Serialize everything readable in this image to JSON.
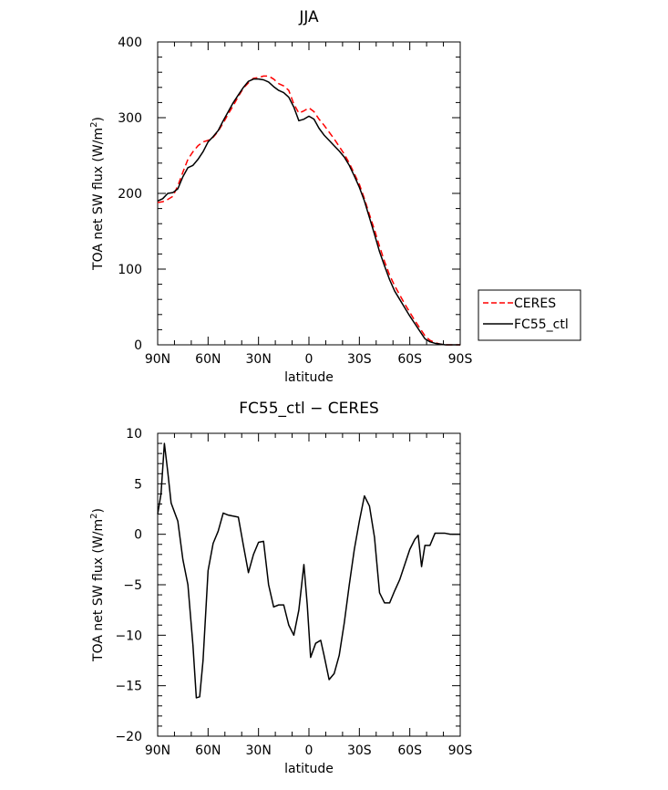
{
  "chart_data": [
    {
      "type": "line",
      "title": "JJA",
      "xlabel": "latitude",
      "ylabel": "TOA net SW flux (W/m",
      "ylabel_sup": "2",
      "ylabel_end": ")",
      "xlim": [
        90,
        -90
      ],
      "ylim": [
        0,
        400
      ],
      "xticks": [
        90,
        60,
        30,
        0,
        -30,
        -60,
        -90
      ],
      "xtick_labels": [
        "90N",
        "60N",
        "30N",
        "0",
        "30S",
        "60S",
        "90S"
      ],
      "yticks": [
        0,
        100,
        200,
        300,
        400
      ],
      "ytick_labels": [
        "0",
        "100",
        "200",
        "300",
        "400"
      ],
      "legend_position": "right",
      "series": [
        {
          "name": "CERES",
          "color": "#ff0000",
          "dash": "dashed",
          "x": [
            90,
            87,
            84,
            81,
            78,
            75,
            72,
            69,
            66,
            63,
            60,
            57,
            54,
            51,
            48,
            45,
            42,
            39,
            36,
            33,
            30,
            27,
            24,
            21,
            18,
            15,
            12,
            9,
            6,
            3,
            0,
            -3,
            -6,
            -9,
            -12,
            -15,
            -18,
            -21,
            -24,
            -27,
            -30,
            -33,
            -36,
            -39,
            -42,
            -45,
            -48,
            -51,
            -54,
            -57,
            -60,
            -63,
            -66,
            -69,
            -72,
            -75,
            -78,
            -81,
            -84,
            -87,
            -90
          ],
          "y": [
            188,
            189,
            192,
            196,
            210,
            228,
            245,
            255,
            263,
            268,
            270,
            274,
            282,
            293,
            305,
            316,
            328,
            339,
            346,
            352,
            353,
            355,
            355,
            351,
            345,
            342,
            336,
            318,
            306,
            309,
            313,
            308,
            298,
            290,
            281,
            272,
            262,
            252,
            240,
            226,
            212,
            193,
            172,
            152,
            130,
            110,
            92,
            78,
            66,
            54,
            43,
            32,
            22,
            12,
            6,
            3,
            1,
            0,
            0,
            0,
            0
          ]
        },
        {
          "name": "FC55_ctl",
          "color": "#000000",
          "dash": "solid",
          "x": [
            90,
            87,
            84,
            81,
            78,
            75,
            72,
            69,
            66,
            63,
            60,
            57,
            54,
            51,
            48,
            45,
            42,
            39,
            36,
            33,
            30,
            27,
            24,
            21,
            18,
            15,
            12,
            9,
            6,
            3,
            0,
            -3,
            -6,
            -9,
            -12,
            -15,
            -18,
            -21,
            -24,
            -27,
            -30,
            -33,
            -36,
            -39,
            -42,
            -45,
            -48,
            -51,
            -54,
            -57,
            -60,
            -63,
            -66,
            -69,
            -72,
            -75,
            -78,
            -81,
            -84,
            -87,
            -90
          ],
          "y": [
            190,
            193,
            200,
            201,
            206,
            222,
            234,
            237,
            245,
            255,
            268,
            275,
            283,
            296,
            308,
            320,
            330,
            340,
            348,
            351,
            351,
            350,
            347,
            341,
            336,
            333,
            327,
            314,
            296,
            298,
            302,
            298,
            286,
            277,
            270,
            263,
            256,
            248,
            237,
            223,
            208,
            190,
            168,
            146,
            123,
            104,
            86,
            71,
            60,
            49,
            38,
            28,
            18,
            8,
            4,
            2,
            1,
            0,
            0,
            0,
            0
          ]
        }
      ]
    },
    {
      "type": "line",
      "title": "FC55_ctl − CERES",
      "xlabel": "latitude",
      "ylabel": "TOA net SW flux (W/m",
      "ylabel_sup": "2",
      "ylabel_end": ")",
      "xlim": [
        90,
        -90
      ],
      "ylim": [
        -20,
        10
      ],
      "xticks": [
        90,
        60,
        30,
        0,
        -30,
        -60,
        -90
      ],
      "xtick_labels": [
        "90N",
        "60N",
        "30N",
        "0",
        "30S",
        "60S",
        "90S"
      ],
      "yticks": [
        -20,
        -15,
        -10,
        -5,
        0,
        5,
        10
      ],
      "ytick_labels": [
        "−20",
        "−15",
        "−10",
        "−5",
        "0",
        "5",
        "10"
      ],
      "series": [
        {
          "color": "#000000",
          "dash": "solid",
          "x": [
            90,
            88,
            86,
            84,
            82,
            80,
            78,
            75,
            72,
            69,
            67,
            65,
            63,
            60,
            57,
            54,
            51,
            48,
            45,
            42,
            39,
            36,
            33,
            30,
            27,
            24,
            21,
            18,
            15,
            12,
            9,
            6,
            3,
            1,
            -1,
            -4,
            -7,
            -9,
            -12,
            -15,
            -18,
            -21,
            -24,
            -27,
            -30,
            -33,
            -36,
            -39,
            -42,
            -45,
            -48,
            -51,
            -54,
            -57,
            -60,
            -63,
            -65,
            -67,
            -69,
            -72,
            -75,
            -78,
            -81,
            -84,
            -87,
            -90
          ],
          "y": [
            2,
            4,
            9,
            6.2,
            3.1,
            2.2,
            1.3,
            -2.5,
            -5,
            -11,
            -16.2,
            -16.1,
            -12.5,
            -3.6,
            -0.9,
            0.3,
            2.1,
            1.9,
            1.8,
            1.7,
            -1.1,
            -3.8,
            -2,
            -0.8,
            -0.7,
            -5,
            -7.2,
            -7,
            -7,
            -9,
            -10,
            -7.5,
            -3,
            -7,
            -12.2,
            -10.8,
            -10.5,
            -12,
            -14.4,
            -13.8,
            -12,
            -8.8,
            -5,
            -1.5,
            1.3,
            3.8,
            2.8,
            -0.3,
            -5.8,
            -6.8,
            -6.8,
            -5.6,
            -4.5,
            -3,
            -1.5,
            -0.5,
            -0.1,
            -3.2,
            -1.1,
            -1.1,
            0.1,
            0.1,
            0.1,
            0,
            0,
            0
          ]
        }
      ]
    }
  ]
}
